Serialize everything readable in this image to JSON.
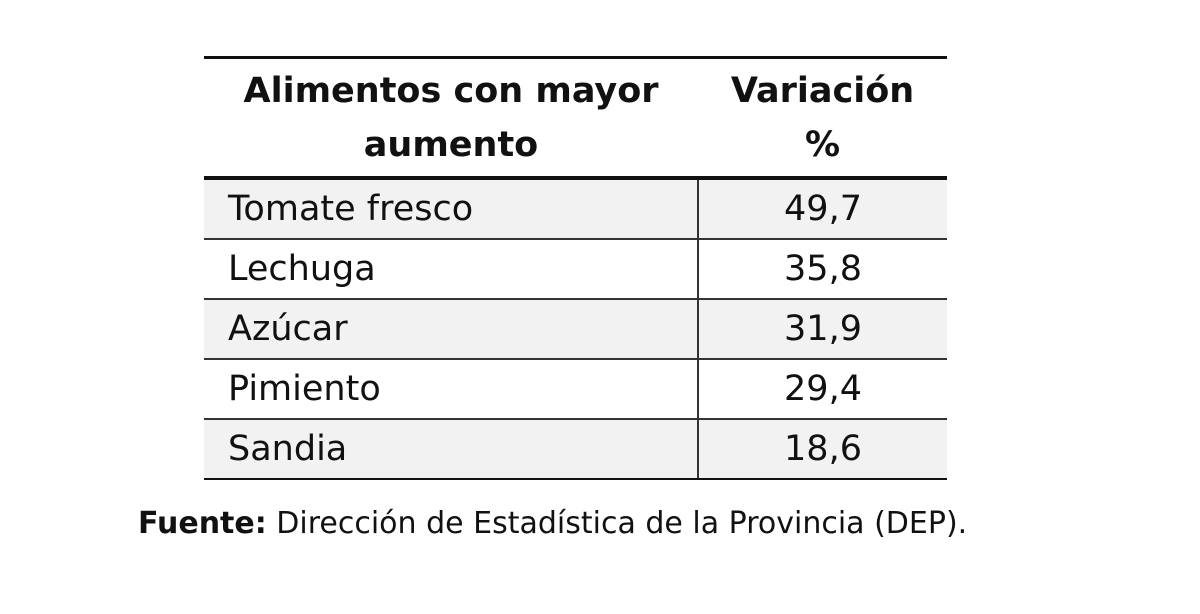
{
  "chart_data": {
    "type": "table",
    "columns": [
      {
        "lines": [
          "Alimentos con mayor",
          "aumento"
        ]
      },
      {
        "lines": [
          "Variación",
          "%"
        ]
      }
    ],
    "rows": [
      {
        "food": "Tomate fresco",
        "value": "49,7"
      },
      {
        "food": "Lechuga",
        "value": "35,8"
      },
      {
        "food": "Azúcar",
        "value": "31,9"
      },
      {
        "food": "Pimiento",
        "value": "29,4"
      },
      {
        "food": "Sandia",
        "value": "18,6"
      }
    ]
  },
  "source": {
    "label": "Fuente:",
    "text": " Dirección de Estadística de la Provincia (DEP)."
  },
  "colors": {
    "row_shade": "#f2f2f2",
    "rule": "#111111"
  }
}
